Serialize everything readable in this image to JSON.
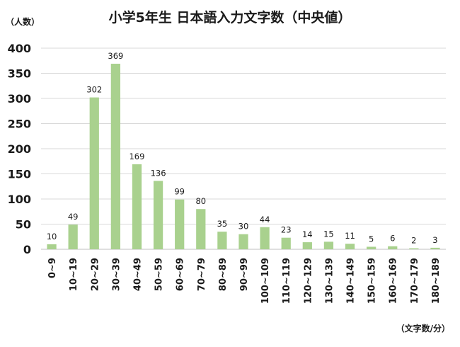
{
  "chart_data": {
    "type": "bar",
    "title": "小学5年生 日本語入力文字数（中央値）",
    "ylabel": "（人数）",
    "xlabel": "（文字数/分）",
    "categories": [
      "0~9",
      "10~19",
      "20~29",
      "30~39",
      "40~49",
      "50~59",
      "60~69",
      "70~79",
      "80~89",
      "90~99",
      "100~109",
      "110~119",
      "120~129",
      "130~139",
      "140~149",
      "150~159",
      "160~169",
      "170~179",
      "180~189"
    ],
    "values": [
      10,
      49,
      302,
      369,
      169,
      136,
      99,
      80,
      35,
      30,
      44,
      23,
      14,
      15,
      11,
      5,
      6,
      2,
      3
    ],
    "ylim": [
      0,
      400
    ],
    "yticks": [
      0,
      50,
      100,
      150,
      200,
      250,
      300,
      350,
      400
    ],
    "grid": true,
    "bar_color": "#a9d18e"
  }
}
